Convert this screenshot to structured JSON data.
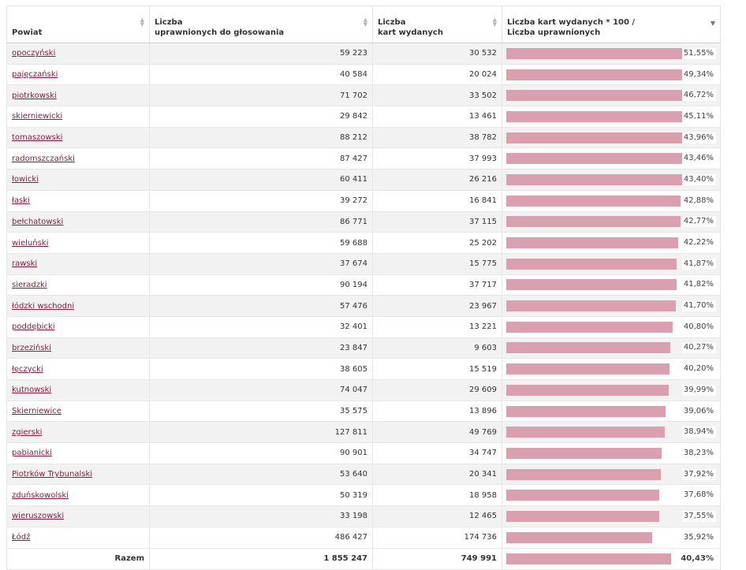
{
  "headers": {
    "powiat": "Powiat",
    "uprawnieni_l1": "Liczba",
    "uprawnieni_l2": "uprawnionych do głosowania",
    "karty_l1": "Liczba",
    "karty_l2": "kart wydanych",
    "ratio_l1": "Liczba kart wydanych * 100 /",
    "ratio_l2": "Liczba uprawnionych"
  },
  "sort": {
    "column": "ratio",
    "direction": "descending"
  },
  "colors": {
    "bar_fill": "#dba0b0",
    "link": "#8b1d3b"
  },
  "rows": [
    {
      "powiat": "opoczyński",
      "uprawnieni": "59 223",
      "karty": "30 532",
      "ratio": 51.55,
      "ratio_label": "51,55%"
    },
    {
      "powiat": "pajęczański",
      "uprawnieni": "40 584",
      "karty": "20 024",
      "ratio": 49.34,
      "ratio_label": "49,34%"
    },
    {
      "powiat": "piotrkowski",
      "uprawnieni": "71 702",
      "karty": "33 502",
      "ratio": 46.72,
      "ratio_label": "46,72%"
    },
    {
      "powiat": "skierniewicki",
      "uprawnieni": "29 842",
      "karty": "13 461",
      "ratio": 45.11,
      "ratio_label": "45,11%"
    },
    {
      "powiat": "tomaszowski",
      "uprawnieni": "88 212",
      "karty": "38 782",
      "ratio": 43.96,
      "ratio_label": "43,96%"
    },
    {
      "powiat": "radomszczański",
      "uprawnieni": "87 427",
      "karty": "37 993",
      "ratio": 43.46,
      "ratio_label": "43,46%"
    },
    {
      "powiat": "łowicki",
      "uprawnieni": "60 411",
      "karty": "26 216",
      "ratio": 43.4,
      "ratio_label": "43,40%"
    },
    {
      "powiat": "łaski",
      "uprawnieni": "39 272",
      "karty": "16 841",
      "ratio": 42.88,
      "ratio_label": "42,88%"
    },
    {
      "powiat": "bełchatowski",
      "uprawnieni": "86 771",
      "karty": "37 115",
      "ratio": 42.77,
      "ratio_label": "42,77%"
    },
    {
      "powiat": "wieluński",
      "uprawnieni": "59 688",
      "karty": "25 202",
      "ratio": 42.22,
      "ratio_label": "42,22%"
    },
    {
      "powiat": "rawski",
      "uprawnieni": "37 674",
      "karty": "15 775",
      "ratio": 41.87,
      "ratio_label": "41,87%"
    },
    {
      "powiat": "sieradzki",
      "uprawnieni": "90 194",
      "karty": "37 717",
      "ratio": 41.82,
      "ratio_label": "41,82%"
    },
    {
      "powiat": "łódzki wschodni",
      "uprawnieni": "57 476",
      "karty": "23 967",
      "ratio": 41.7,
      "ratio_label": "41,70%"
    },
    {
      "powiat": "poddębicki",
      "uprawnieni": "32 401",
      "karty": "13 221",
      "ratio": 40.8,
      "ratio_label": "40,80%"
    },
    {
      "powiat": "brzeziński",
      "uprawnieni": "23 847",
      "karty": "9 603",
      "ratio": 40.27,
      "ratio_label": "40,27%"
    },
    {
      "powiat": "łęczycki",
      "uprawnieni": "38 605",
      "karty": "15 519",
      "ratio": 40.2,
      "ratio_label": "40,20%"
    },
    {
      "powiat": "kutnowski",
      "uprawnieni": "74 047",
      "karty": "29 609",
      "ratio": 39.99,
      "ratio_label": "39,99%"
    },
    {
      "powiat": "Skierniewice",
      "uprawnieni": "35 575",
      "karty": "13 896",
      "ratio": 39.06,
      "ratio_label": "39,06%"
    },
    {
      "powiat": "zgierski",
      "uprawnieni": "127 811",
      "karty": "49 769",
      "ratio": 38.94,
      "ratio_label": "38,94%"
    },
    {
      "powiat": "pabianicki",
      "uprawnieni": "90 901",
      "karty": "34 747",
      "ratio": 38.23,
      "ratio_label": "38,23%"
    },
    {
      "powiat": "Piotrków Trybunalski",
      "uprawnieni": "53 640",
      "karty": "20 341",
      "ratio": 37.92,
      "ratio_label": "37,92%"
    },
    {
      "powiat": "zduńskowolski",
      "uprawnieni": "50 319",
      "karty": "18 958",
      "ratio": 37.68,
      "ratio_label": "37,68%"
    },
    {
      "powiat": "wieruszowski",
      "uprawnieni": "33 198",
      "karty": "12 465",
      "ratio": 37.55,
      "ratio_label": "37,55%"
    },
    {
      "powiat": "Łódź",
      "uprawnieni": "486 427",
      "karty": "174 736",
      "ratio": 35.92,
      "ratio_label": "35,92%"
    }
  ],
  "footer": {
    "label": "Razem",
    "uprawnieni": "1 855 247",
    "karty": "749 991",
    "ratio": 40.43,
    "ratio_label": "40,43%"
  }
}
